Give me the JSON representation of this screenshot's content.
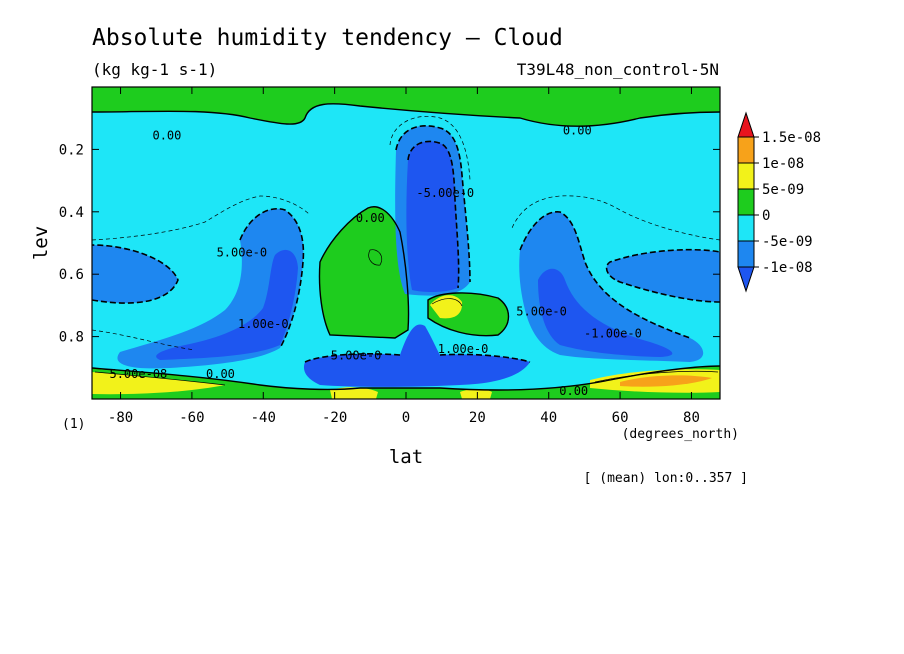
{
  "chart_data": {
    "type": "contour",
    "title": "Absolute humidity tendency — Cloud",
    "units": "(kg kg-1 s-1)",
    "experiment": "T39L48_non_control-5N",
    "xlabel": "lat",
    "x_units": "(degrees_north)",
    "ylabel": "lev",
    "y_units": "(1)",
    "footer": "[ (mean) lon:0..357 ]",
    "xlim": [
      -88,
      88
    ],
    "ylim": [
      0.0,
      1.0
    ],
    "y_inverted": true,
    "x_ticks": [
      -80,
      -60,
      -40,
      -20,
      0,
      20,
      40,
      60,
      80
    ],
    "x_tick_labels": [
      "-80",
      "-60",
      "-40",
      "-20",
      "0",
      "20",
      "40",
      "60",
      "80"
    ],
    "y_ticks": [
      0.2,
      0.4,
      0.6,
      0.8
    ],
    "y_tick_labels": [
      "0.2",
      "0.4",
      "0.6",
      "0.8"
    ],
    "colorbar": {
      "levels": [
        "1.5e-08",
        "1e-08",
        "5e-09",
        "0",
        "-5e-09",
        "-1e-08"
      ],
      "colors": [
        "#e8141e",
        "#f7a21a",
        "#f2f21a",
        "#1ecc1e",
        "#1ee6f7",
        "#1e87f0",
        "#1e56f0"
      ]
    },
    "contour_labels": [
      {
        "text": "0.00",
        "lat": -67,
        "lev": 0.155
      },
      {
        "text": "0.00",
        "lat": 48,
        "lev": 0.14
      },
      {
        "text": "0.00",
        "lat": -10,
        "lev": 0.42
      },
      {
        "text": "0.00",
        "lat": -52,
        "lev": 0.92
      },
      {
        "text": "0.00",
        "lat": 47,
        "lev": 0.975
      },
      {
        "text": "5.00e-0",
        "lat": -46,
        "lev": 0.53
      },
      {
        "text": "1.00e-0",
        "lat": -40,
        "lev": 0.76
      },
      {
        "text": "5.00e-0",
        "lat": -14,
        "lev": 0.86
      },
      {
        "text": "5.00e-08",
        "lat": -75,
        "lev": 0.92
      },
      {
        "text": "-5.00e-0",
        "lat": 11,
        "lev": 0.34
      },
      {
        "text": "1.00e-0",
        "lat": 16,
        "lev": 0.84
      },
      {
        "text": "5.00e-0",
        "lat": 38,
        "lev": 0.72
      },
      {
        "text": "-1.00e-0",
        "lat": 58,
        "lev": 0.79
      }
    ]
  }
}
